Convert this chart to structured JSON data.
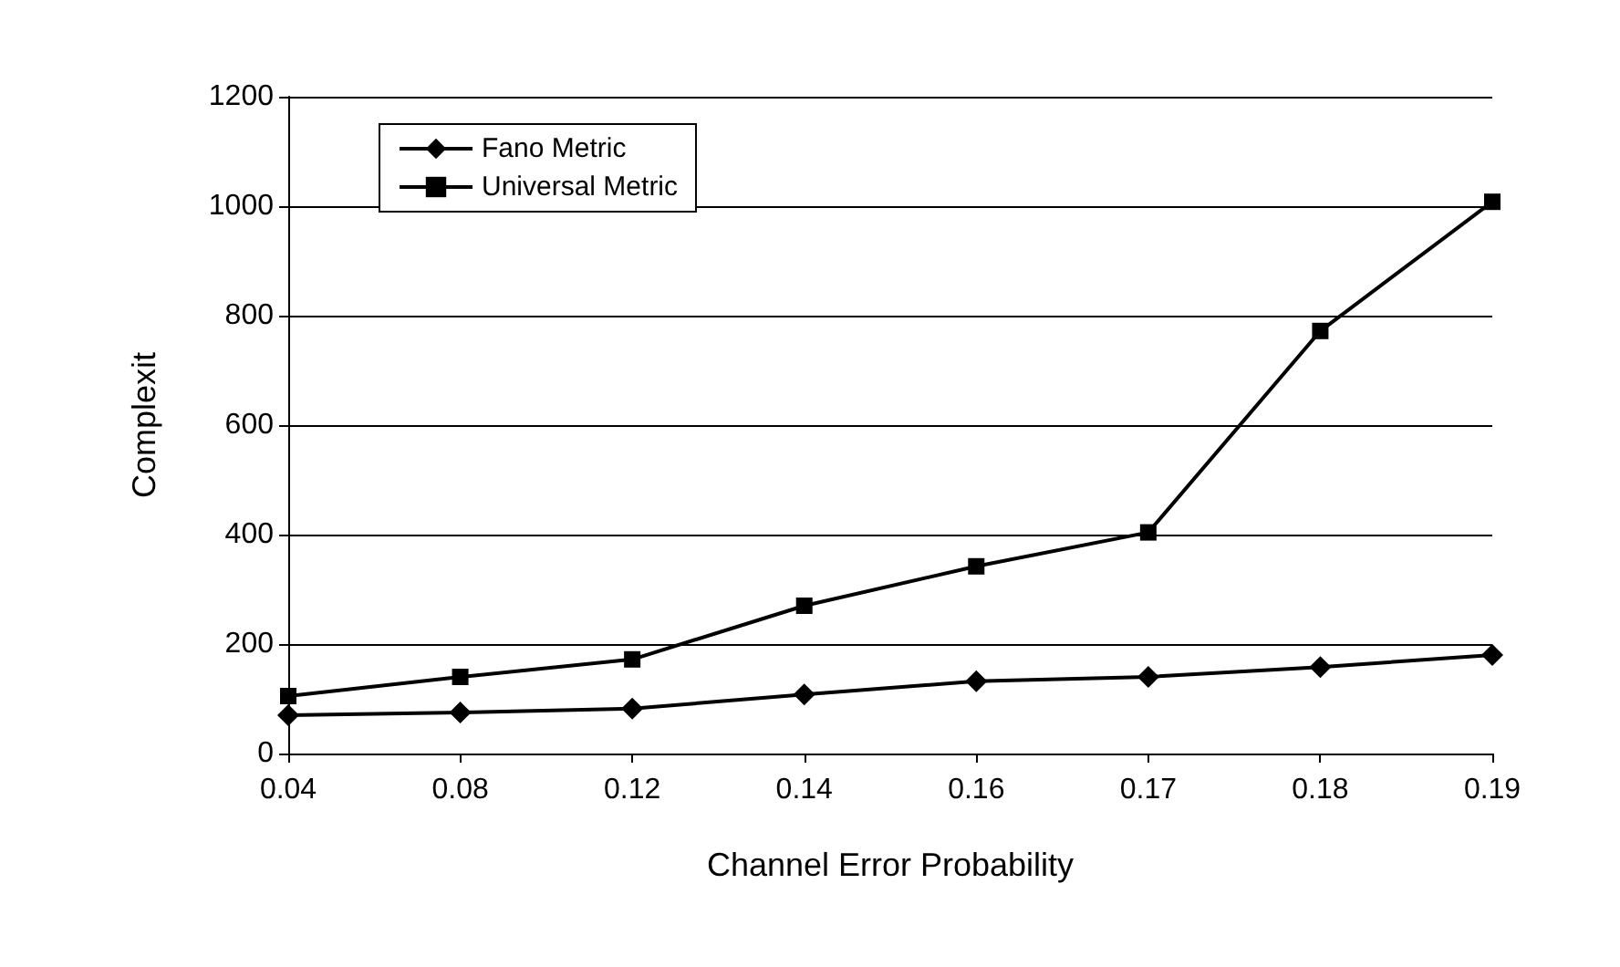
{
  "chart_data": {
    "type": "line",
    "xlabel": "Channel Error Probability",
    "ylabel": "Complexit",
    "categories": [
      "0.04",
      "0.08",
      "0.12",
      "0.14",
      "0.16",
      "0.17",
      "0.18",
      "0.19"
    ],
    "series": [
      {
        "name": "Fano Metric",
        "color": "#000000",
        "marker": "diamond",
        "values": [
          70,
          75,
          82,
          108,
          132,
          140,
          158,
          180
        ]
      },
      {
        "name": "Universal Metric",
        "color": "#000000",
        "marker": "square",
        "values": [
          105,
          140,
          172,
          270,
          342,
          404,
          772,
          1008
        ]
      }
    ],
    "ylim": [
      0,
      1200
    ],
    "yticks": [
      0,
      200,
      400,
      600,
      800,
      1000,
      1200
    ],
    "grid": "y",
    "legend": "top left",
    "line_style": "solid"
  }
}
